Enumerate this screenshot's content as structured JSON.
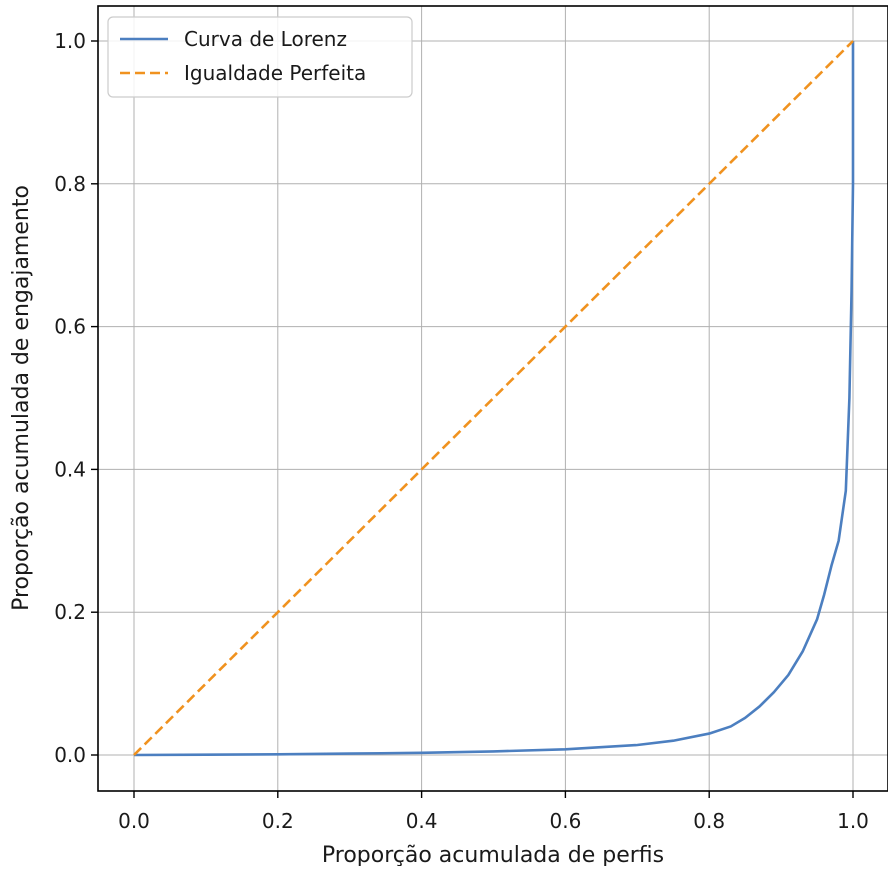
{
  "chart_data": {
    "type": "line",
    "title": "",
    "xlabel": "Proporção acumulada de perfis",
    "ylabel": "Proporção acumulada de engajamento",
    "xlim": [
      -0.05,
      1.05
    ],
    "ylim": [
      -0.05,
      1.05
    ],
    "xticks": [
      0.0,
      0.2,
      0.4,
      0.6,
      0.8,
      1.0
    ],
    "xtick_labels": [
      "0.0",
      "0.2",
      "0.4",
      "0.6",
      "0.8",
      "1.0"
    ],
    "yticks": [
      0.0,
      0.2,
      0.4,
      0.6,
      0.8,
      1.0
    ],
    "ytick_labels": [
      "0.0",
      "0.2",
      "0.4",
      "0.6",
      "0.8",
      "1.0"
    ],
    "grid": true,
    "legend": {
      "position": "top-left",
      "entries": [
        "Curva de Lorenz",
        "Igualdade Perfeita"
      ]
    },
    "series": [
      {
        "name": "Curva de Lorenz",
        "color": "#4c7fc0",
        "style": "solid",
        "x": [
          0.0,
          0.1,
          0.2,
          0.3,
          0.4,
          0.5,
          0.6,
          0.7,
          0.75,
          0.8,
          0.83,
          0.85,
          0.87,
          0.89,
          0.91,
          0.93,
          0.95,
          0.96,
          0.97,
          0.98,
          0.99,
          0.995,
          0.998,
          1.0,
          1.0
        ],
        "y": [
          0.0,
          0.0005,
          0.001,
          0.002,
          0.003,
          0.005,
          0.008,
          0.014,
          0.02,
          0.03,
          0.04,
          0.052,
          0.068,
          0.088,
          0.112,
          0.145,
          0.19,
          0.225,
          0.265,
          0.3,
          0.37,
          0.5,
          0.65,
          0.8,
          1.0
        ]
      },
      {
        "name": "Igualdade Perfeita",
        "color": "#f0921f",
        "style": "dashed",
        "x": [
          0.0,
          1.0
        ],
        "y": [
          0.0,
          1.0
        ]
      }
    ]
  }
}
